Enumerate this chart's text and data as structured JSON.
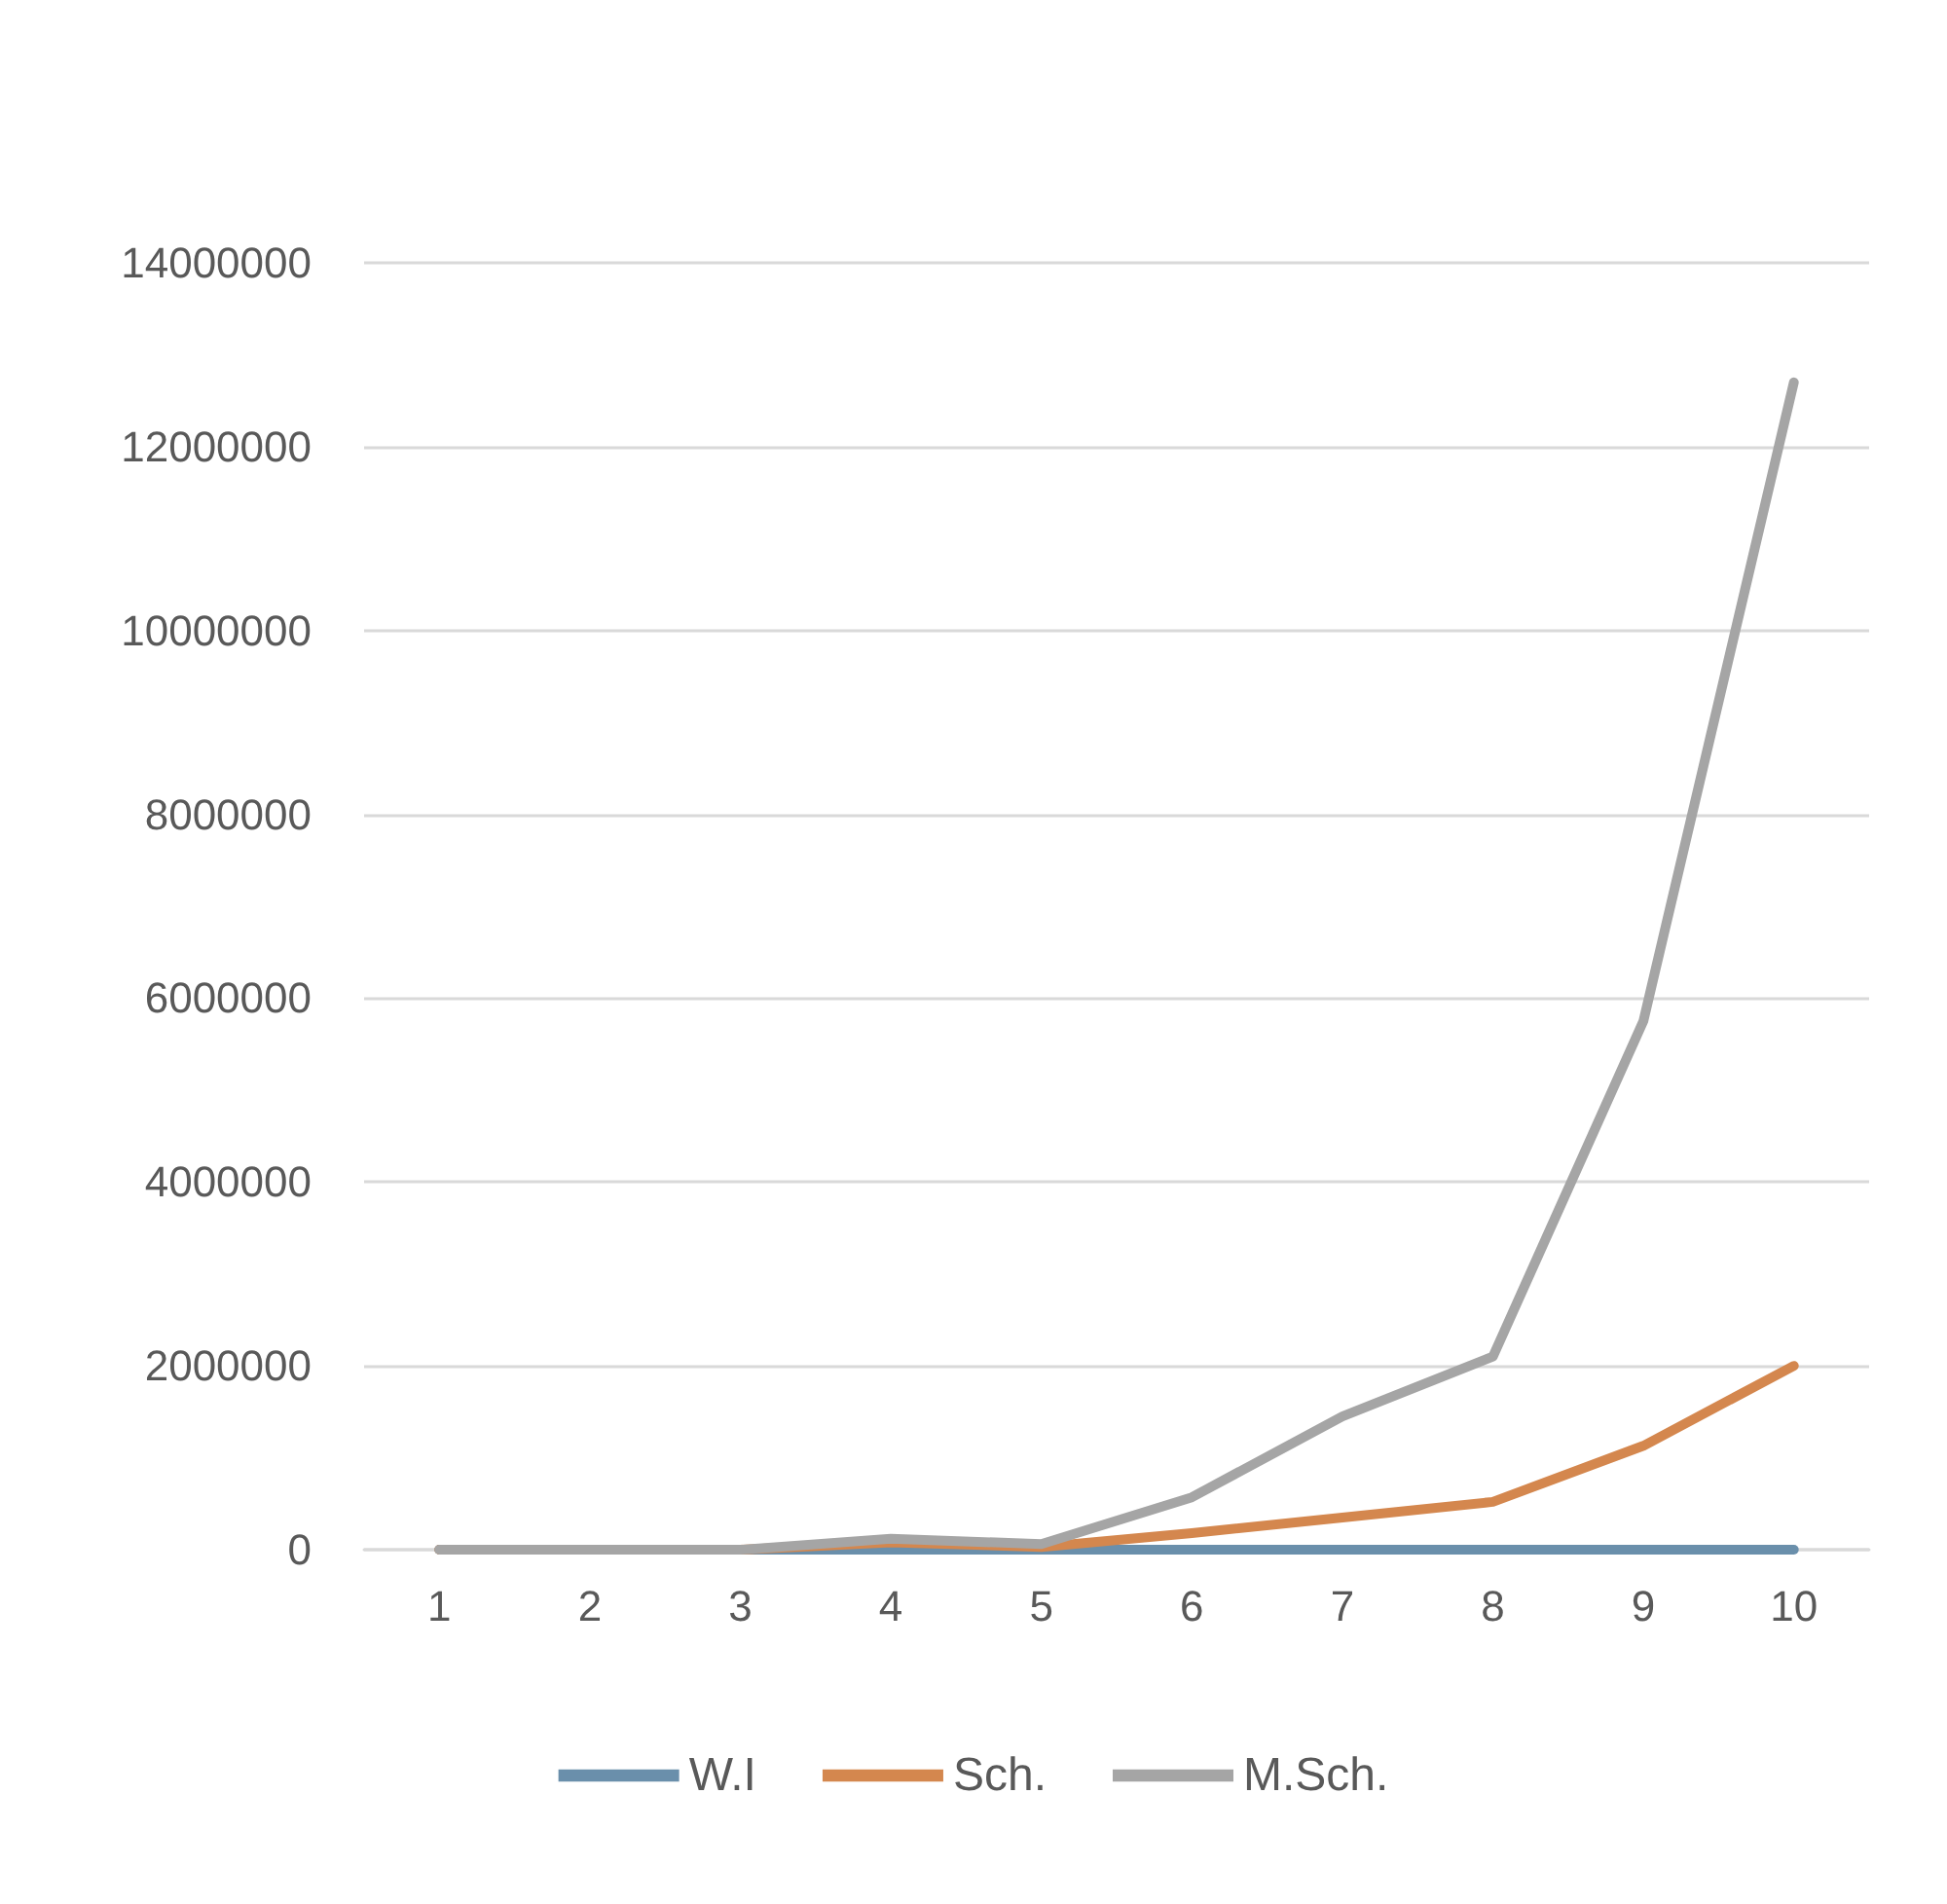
{
  "chart_data": {
    "type": "line",
    "categories": [
      "1",
      "2",
      "3",
      "4",
      "5",
      "6",
      "7",
      "8",
      "9",
      "10"
    ],
    "series": [
      {
        "name": "W.I",
        "color": "#6a8fab",
        "values": [
          0,
          0,
          0,
          0,
          0,
          0,
          0,
          0,
          0,
          0
        ]
      },
      {
        "name": "Sch.",
        "color": "#d4874e",
        "values": [
          0,
          0,
          0,
          80000,
          30000,
          180000,
          350000,
          520000,
          1130000,
          2000000
        ]
      },
      {
        "name": "M.Sch.",
        "color": "#a5a5a5",
        "values": [
          0,
          0,
          0,
          120000,
          60000,
          570000,
          1450000,
          2100000,
          5750000,
          12700000
        ]
      }
    ],
    "ylim": [
      0,
      14000000
    ],
    "yticks": [
      0,
      2000000,
      4000000,
      6000000,
      8000000,
      10000000,
      12000000,
      14000000
    ],
    "grid": "y",
    "legend": "bottom"
  }
}
